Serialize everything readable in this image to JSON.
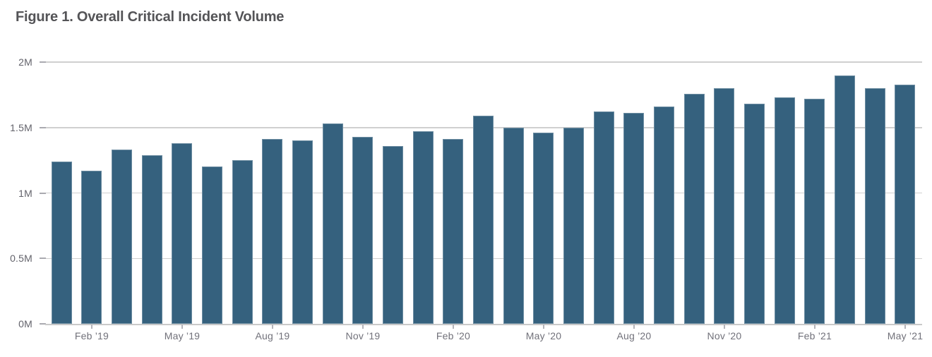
{
  "title": "Figure 1. Overall Critical Incident Volume",
  "colors": {
    "bar": "#35617E",
    "gridline": "#D0D0D0",
    "axis_line": "#C9C9C9",
    "tick": "#AAAAB0",
    "y_label": "#63636B",
    "x_label": "#71717A",
    "title": "#545457",
    "background": "#FFFFFF"
  },
  "chart_data": {
    "type": "bar",
    "title": "Figure 1. Overall Critical Incident Volume",
    "xlabel": "",
    "ylabel": "",
    "unit": "M = millions",
    "ylim": [
      0,
      2
    ],
    "grid": "horizontal",
    "legend": "none",
    "categories": [
      "Jan ’19",
      "Feb ’19",
      "Mar ’19",
      "Apr ’19",
      "May ’19",
      "Jun ’19",
      "Jul ’19",
      "Aug ’19",
      "Sep ’19",
      "Oct ’19",
      "Nov ’19",
      "Dec ’19",
      "Jan ’20",
      "Feb ’20",
      "Mar ’20",
      "Apr ’20",
      "May ’20",
      "Jun ’20",
      "Jul ’20",
      "Aug ’20",
      "Sep ’20",
      "Oct ’20",
      "Nov ’20",
      "Dec ’20",
      "Jan ’21",
      "Feb ’21",
      "Mar ’21",
      "Apr ’21",
      "May ’21"
    ],
    "values": [
      1.24,
      1.17,
      1.33,
      1.29,
      1.38,
      1.2,
      1.25,
      1.41,
      1.4,
      1.53,
      1.43,
      1.36,
      1.47,
      1.41,
      1.59,
      1.5,
      1.46,
      1.5,
      1.62,
      1.61,
      1.66,
      1.76,
      1.8,
      1.68,
      1.73,
      1.72,
      1.9,
      1.8,
      1.83
    ],
    "values_unit": "millions",
    "y_ticks": [
      {
        "value": 0,
        "label": "0M"
      },
      {
        "value": 0.5,
        "label": "0.5M"
      },
      {
        "value": 1,
        "label": "1M"
      },
      {
        "value": 1.5,
        "label": "1.5M"
      },
      {
        "value": 2,
        "label": "2M"
      }
    ],
    "x_ticks": [
      {
        "index": 1,
        "label": "Feb ’19"
      },
      {
        "index": 4,
        "label": "May ’19"
      },
      {
        "index": 7,
        "label": "Aug ’19"
      },
      {
        "index": 10,
        "label": "Nov ’19"
      },
      {
        "index": 13,
        "label": "Feb ’20"
      },
      {
        "index": 16,
        "label": "May ’20"
      },
      {
        "index": 19,
        "label": "Aug ’20"
      },
      {
        "index": 22,
        "label": "Nov ’20"
      },
      {
        "index": 25,
        "label": "Feb ’21"
      },
      {
        "index": 28,
        "label": "May ’21"
      }
    ]
  }
}
